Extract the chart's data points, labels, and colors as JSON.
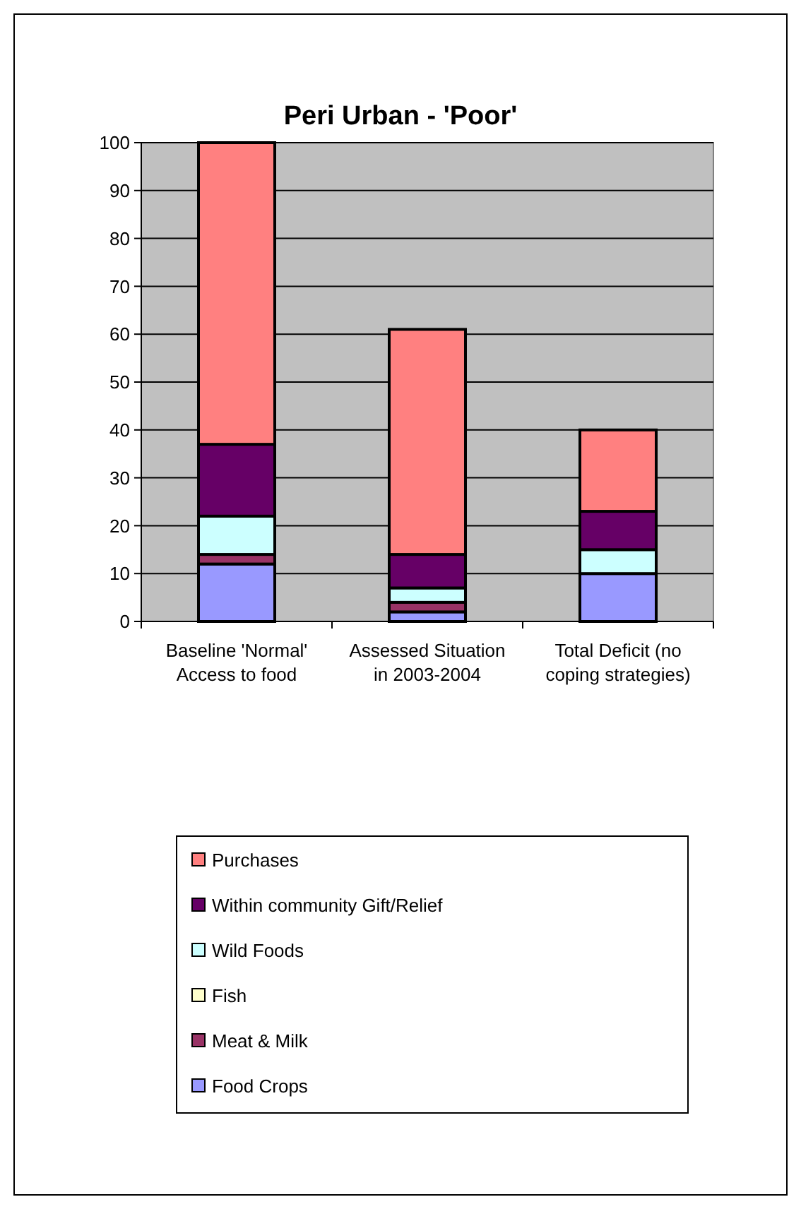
{
  "chart_data": {
    "type": "bar",
    "title": "Peri Urban - 'Poor'",
    "stacked": true,
    "categories": [
      "Baseline 'Normal' Access to food",
      "Assessed Situation in 2003-2004",
      "Total Deficit  (no coping strategies)"
    ],
    "series": [
      {
        "name": "Food Crops",
        "color": "#9999ff",
        "values": [
          12,
          2,
          10
        ]
      },
      {
        "name": "Meat & Milk",
        "color": "#993366",
        "values": [
          2,
          2,
          0
        ]
      },
      {
        "name": "Fish",
        "color": "#ffffcc",
        "values": [
          0,
          0,
          0
        ]
      },
      {
        "name": "Wild Foods",
        "color": "#ccffff",
        "values": [
          8,
          3,
          5
        ]
      },
      {
        "name": "Within community Gift/Relief",
        "color": "#660066",
        "values": [
          15,
          7,
          8
        ]
      },
      {
        "name": "Purchases",
        "color": "#ff8080",
        "values": [
          63,
          47,
          17
        ]
      }
    ],
    "ylim": [
      0,
      100
    ],
    "yticks": [
      0,
      10,
      20,
      30,
      40,
      50,
      60,
      70,
      80,
      90,
      100
    ],
    "grid": "y",
    "legend": "bottom"
  }
}
